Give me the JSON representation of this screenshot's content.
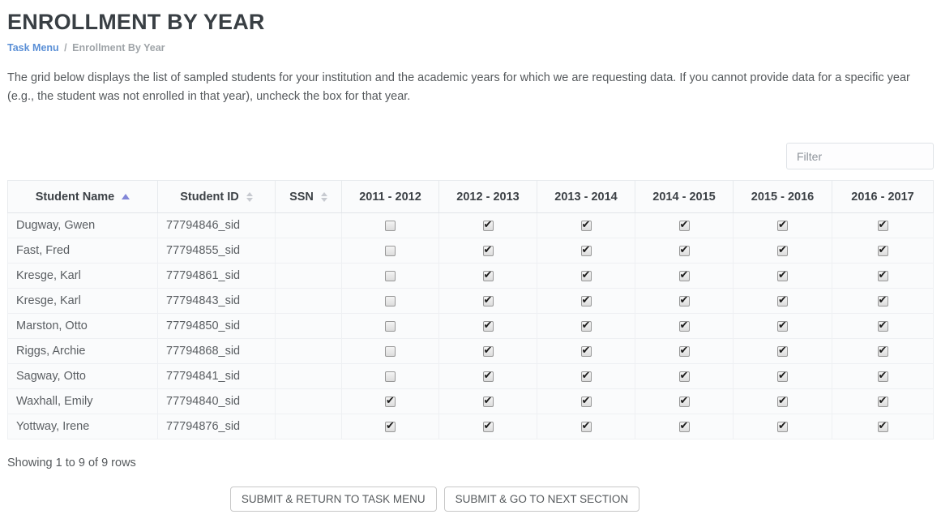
{
  "page": {
    "title": "ENROLLMENT BY YEAR",
    "breadcrumb": {
      "link": "Task Menu",
      "separator": "/",
      "current": "Enrollment By Year"
    },
    "description": "The grid below displays the list of sampled students for your institution and the academic years for which we are requesting data. If you cannot provide data for a specific year (e.g., the student was not enrolled in that year), uncheck the box for that year.",
    "filter_placeholder": "Filter",
    "pagination_status": "Showing 1 to 9 of 9 rows",
    "buttons": [
      {
        "label": "SUBMIT & RETURN TO TASK MENU"
      },
      {
        "label": "SUBMIT & GO TO NEXT SECTION"
      }
    ]
  },
  "colors": {
    "sort_active_arrow": "#8287d8",
    "sort_inactive_arrow": "#c7cad0",
    "breadcrumb_link": "#5a8fd6",
    "title_text": "#393f44"
  },
  "table": {
    "columns": [
      {
        "label": "Student Name",
        "sort": "asc",
        "width": 185
      },
      {
        "label": "Student ID",
        "sort": "none",
        "width": 145
      },
      {
        "label": "SSN",
        "sort": "none",
        "width": 82
      },
      {
        "label": "2011 - 2012",
        "sort": null,
        "width": 120
      },
      {
        "label": "2012 - 2013",
        "sort": null,
        "width": 121
      },
      {
        "label": "2013 - 2014",
        "sort": null,
        "width": 121
      },
      {
        "label": "2014 - 2015",
        "sort": null,
        "width": 121
      },
      {
        "label": "2015 - 2016",
        "sort": null,
        "width": 122
      },
      {
        "label": "2016 - 2017",
        "sort": null,
        "width": 125
      }
    ],
    "rows": [
      {
        "name": "Dugway, Gwen",
        "id": "77794846_sid",
        "ssn": "",
        "years": [
          false,
          true,
          true,
          true,
          true,
          true
        ]
      },
      {
        "name": "Fast, Fred",
        "id": "77794855_sid",
        "ssn": "",
        "years": [
          false,
          true,
          true,
          true,
          true,
          true
        ]
      },
      {
        "name": "Kresge, Karl",
        "id": "77794861_sid",
        "ssn": "",
        "years": [
          false,
          true,
          true,
          true,
          true,
          true
        ]
      },
      {
        "name": "Kresge, Karl",
        "id": "77794843_sid",
        "ssn": "",
        "years": [
          false,
          true,
          true,
          true,
          true,
          true
        ]
      },
      {
        "name": "Marston, Otto",
        "id": "77794850_sid",
        "ssn": "",
        "years": [
          false,
          true,
          true,
          true,
          true,
          true
        ]
      },
      {
        "name": "Riggs, Archie",
        "id": "77794868_sid",
        "ssn": "",
        "years": [
          false,
          true,
          true,
          true,
          true,
          true
        ]
      },
      {
        "name": "Sagway, Otto",
        "id": "77794841_sid",
        "ssn": "",
        "years": [
          false,
          true,
          true,
          true,
          true,
          true
        ]
      },
      {
        "name": "Waxhall, Emily",
        "id": "77794840_sid",
        "ssn": "",
        "years": [
          true,
          true,
          true,
          true,
          true,
          true
        ]
      },
      {
        "name": "Yottway, Irene",
        "id": "77794876_sid",
        "ssn": "",
        "years": [
          true,
          true,
          true,
          true,
          true,
          true
        ]
      }
    ]
  }
}
